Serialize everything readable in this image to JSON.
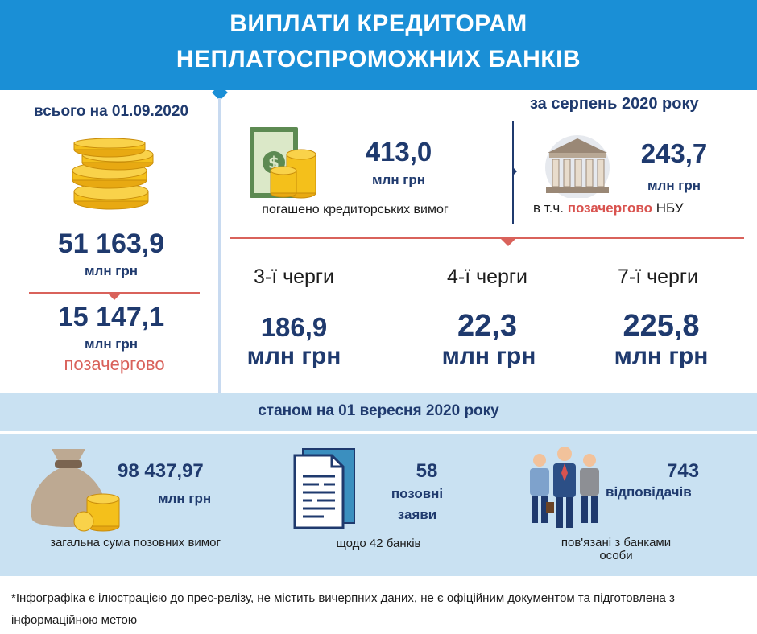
{
  "header": {
    "title_line1": "ВИПЛАТИ КРЕДИТОРАМ",
    "title_line2": "НЕПЛАТОСПРОМОЖНИХ БАНКІВ"
  },
  "total": {
    "label": "всього на 01.09.2020",
    "amount": "51 163,9",
    "unit": "млн грн",
    "priority_amount": "15 147,1",
    "priority_unit": "млн грн",
    "priority_label": "позачергово"
  },
  "august": {
    "label": "за серпень 2020 року",
    "repaid_amount": "413,0",
    "repaid_unit": "млн грн",
    "repaid_label": "погашено кредиторських вимог",
    "nbu_amount": "243,7",
    "nbu_unit": "млн грн",
    "nbu_prefix": "в т.ч.",
    "nbu_highlight": "позачергово",
    "nbu_suffix": "НБУ"
  },
  "queues": [
    {
      "label": "3-ї черги",
      "amount": "186,9",
      "unit": "млн грн"
    },
    {
      "label": "4-ї черги",
      "amount": "22,3",
      "unit": "млн грн"
    },
    {
      "label": "7-ї черги",
      "amount": "225,8",
      "unit": "млн грн"
    }
  ],
  "status": {
    "label": "станом на 01 вересня 2020 року",
    "claims_amount": "98 437,97",
    "claims_unit": "млн грн",
    "claims_label": "загальна сума позовних вимог",
    "lawsuits_count": "58",
    "lawsuits_label_1": "позовні",
    "lawsuits_label_2": "заяви",
    "lawsuits_note": "щодо 42 банків",
    "defendants_count": "743",
    "defendants_label": "відповідачів",
    "defendants_note_1": "пов'язані з банками",
    "defendants_note_2": "особи"
  },
  "footnote": "*Інфографіка є ілюстрацією до прес-релізу, не містить вичерпних даних, не є офіційним документом та підготовлена з інформаційною метою",
  "icons": [
    "coin-stack-icon",
    "money-coins-icon",
    "bank-building-icon",
    "money-bag-icon",
    "document-icon",
    "people-icon"
  ],
  "colors": {
    "header": "#1a8fd6",
    "navy": "#1f3a6e",
    "accent_red": "#d9625b",
    "band": "#c9e1f2"
  }
}
